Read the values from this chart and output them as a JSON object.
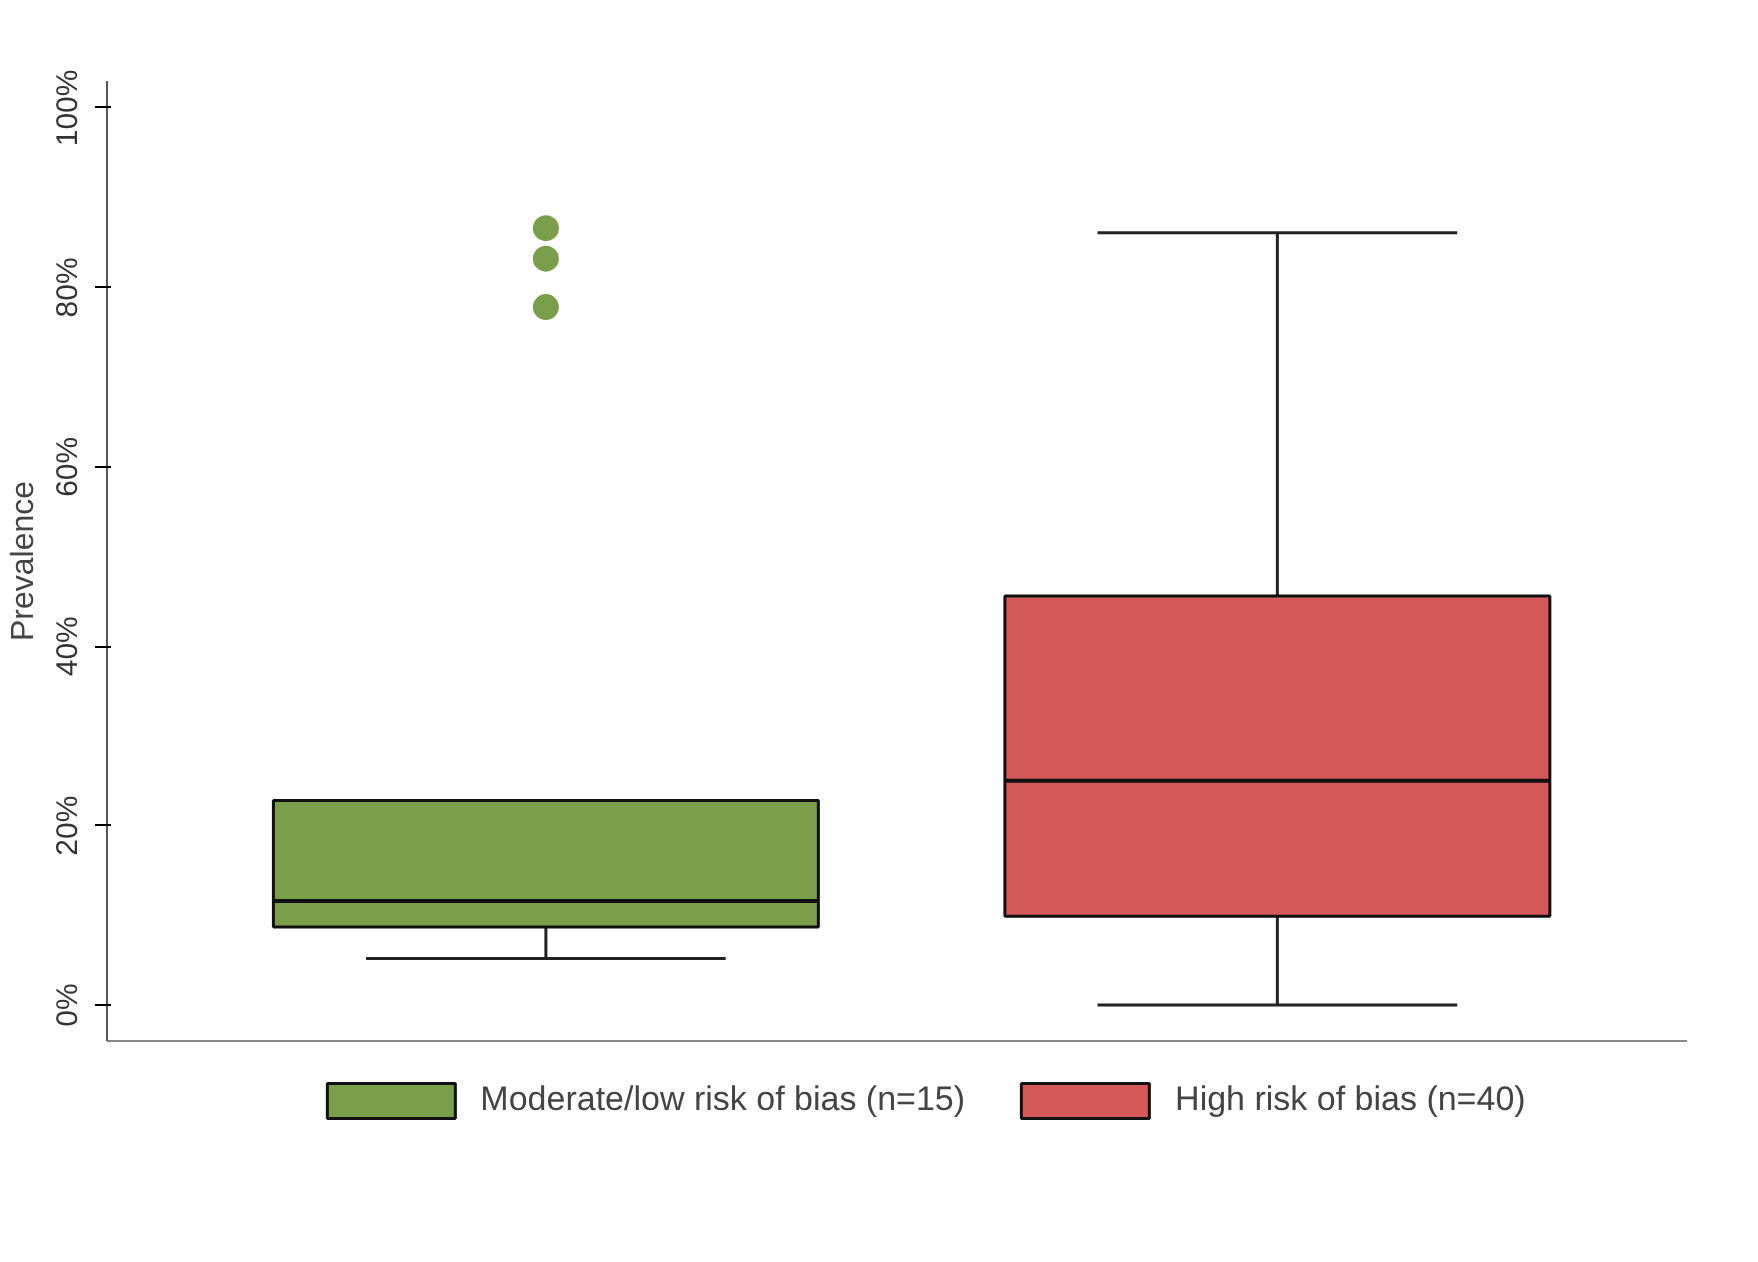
{
  "chart_data": {
    "type": "box",
    "ylabel": "Prevalence",
    "categories": [
      null,
      null
    ],
    "series": [
      {
        "name": "Moderate/low risk of bias (n=15)",
        "color": "#7a9e4a",
        "boxes": [
          {
            "low": 5.2,
            "q1": 8.7,
            "median": 11.6,
            "q3": 22.8,
            "high": 22.8,
            "outliers": [
              86.6,
              83.2,
              77.8
            ]
          },
          null
        ]
      },
      {
        "name": "High risk of bias (n=40)",
        "color": "#d35a58",
        "boxes": [
          null,
          {
            "low": 0,
            "q1": 9.9,
            "median": 25.0,
            "q3": 45.6,
            "high": 86.1
          }
        ]
      }
    ],
    "ylim": [
      -4,
      103
    ],
    "yticks": [
      {
        "value": 0,
        "label": "0%"
      },
      {
        "value": 20,
        "label": "20%"
      },
      {
        "value": 40,
        "label": "40%"
      },
      {
        "value": 60,
        "label": "60%"
      },
      {
        "value": 80,
        "label": "80%"
      },
      {
        "value": 100,
        "label": "100%"
      }
    ],
    "grid": false,
    "legend": "bottom",
    "marker": "circle"
  }
}
